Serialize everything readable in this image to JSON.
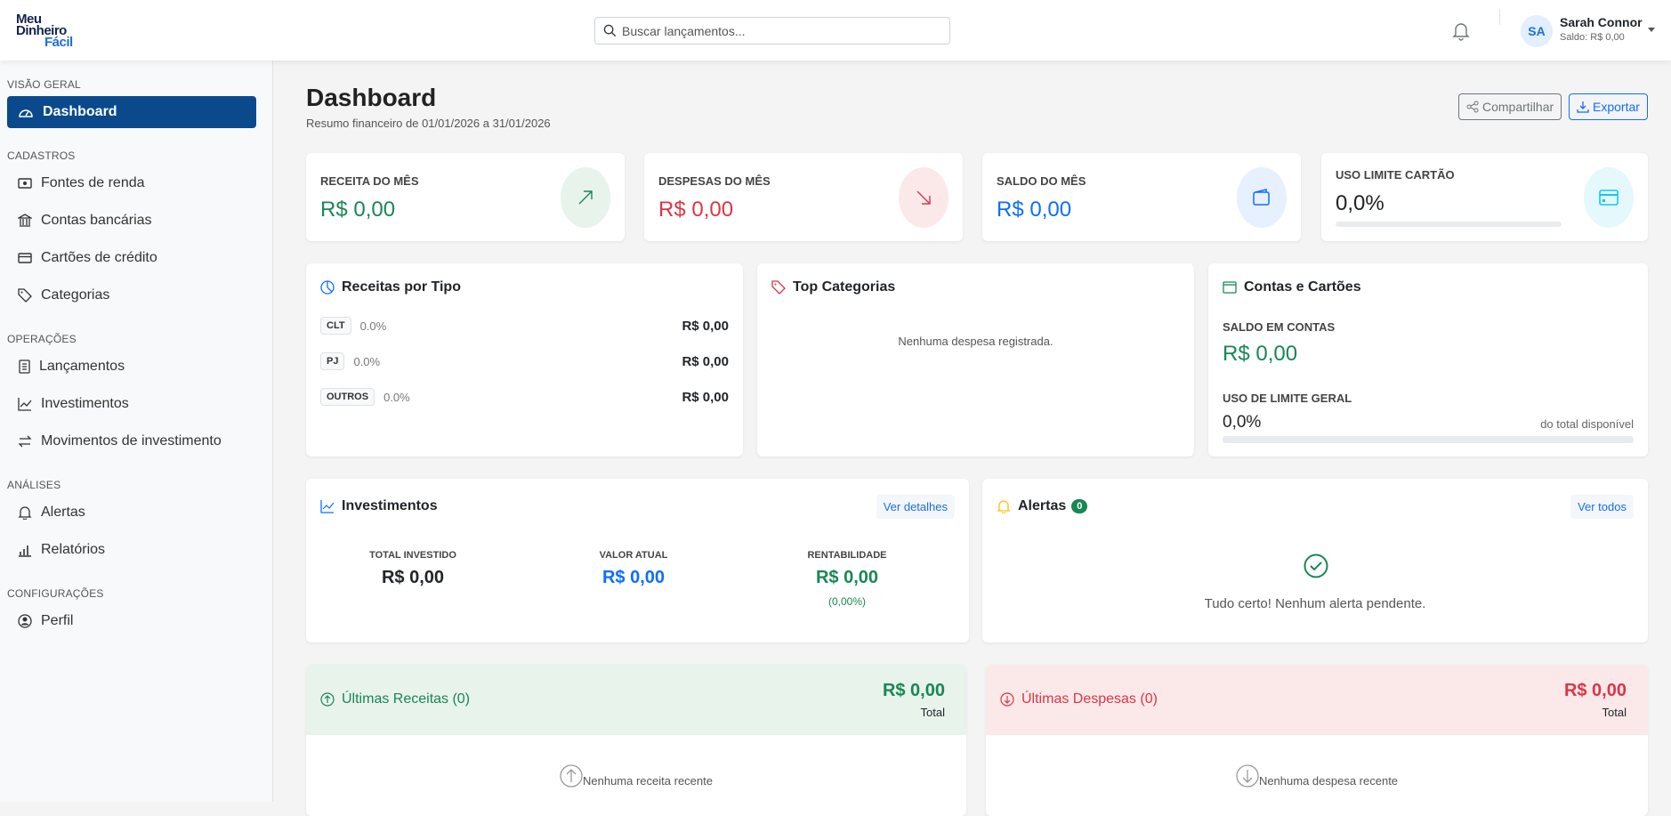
{
  "header": {
    "logo": [
      "Meu",
      "Dinheiro",
      "Fácil"
    ],
    "search_placeholder": "Buscar lançamentos...",
    "user": {
      "initials": "SA",
      "name": "Sarah Connor",
      "balance": "Saldo: R$ 0,00"
    }
  },
  "sidebar": {
    "sections": [
      {
        "title": "VISÃO GERAL",
        "items": [
          {
            "label": "Dashboard",
            "icon": "speedometer-icon",
            "active": true
          }
        ]
      },
      {
        "title": "CADASTROS",
        "items": [
          {
            "label": "Fontes de renda",
            "icon": "cash-icon"
          },
          {
            "label": "Contas bancárias",
            "icon": "bank-icon"
          },
          {
            "label": "Cartões de crédito",
            "icon": "credit-card-icon"
          },
          {
            "label": "Categorias",
            "icon": "tag-icon"
          }
        ]
      },
      {
        "title": "OPERAÇÕES",
        "items": [
          {
            "label": "Lançamentos",
            "icon": "journal-icon"
          },
          {
            "label": "Investimentos",
            "icon": "graph-icon"
          },
          {
            "label": "Movimentos de investimento",
            "icon": "arrows-icon"
          }
        ]
      },
      {
        "title": "ANÁLISES",
        "items": [
          {
            "label": "Alertas",
            "icon": "bell-icon"
          },
          {
            "label": "Relatórios",
            "icon": "bar-chart-icon"
          }
        ]
      },
      {
        "title": "CONFIGURAÇÕES",
        "items": [
          {
            "label": "Perfil",
            "icon": "person-circle-icon"
          }
        ]
      }
    ]
  },
  "page": {
    "title": "Dashboard",
    "subtitle": "Resumo financeiro de 01/01/2026 a 31/01/2026",
    "share_label": "Compartilhar",
    "export_label": "Exportar"
  },
  "stats": [
    {
      "label": "RECEITA DO MÊS",
      "value": "R$ 0,00",
      "color": "#198754",
      "bg": "#e8f3ec"
    },
    {
      "label": "DESPESAS DO MÊS",
      "value": "R$ 0,00",
      "color": "#dc3545",
      "bg": "#fbe9ea"
    },
    {
      "label": "SALDO DO MÊS",
      "value": "R$ 0,00",
      "color": "#0d6efd",
      "bg": "#e6f0ff"
    },
    {
      "label": "USO LIMITE CARTÃO",
      "value": "0,0%",
      "progress": 0,
      "color": "#0dcaf0",
      "bg": "#e5f8fc"
    }
  ],
  "receitas": {
    "title": "Receitas por Tipo",
    "rows": [
      {
        "type": "CLT",
        "pct": "0.0%",
        "amount": "R$ 0,00"
      },
      {
        "type": "PJ",
        "pct": "0.0%",
        "amount": "R$ 0,00"
      },
      {
        "type": "OUTROS",
        "pct": "0.0%",
        "amount": "R$ 0,00"
      }
    ]
  },
  "top_categorias": {
    "title": "Top Categorias",
    "empty": "Nenhuma despesa registrada."
  },
  "contas": {
    "title": "Contas e Cartões",
    "saldo_label": "SALDO EM CONTAS",
    "saldo_value": "R$ 0,00",
    "limite_label": "USO DE LIMITE GERAL",
    "limite_value": "0,0%",
    "limite_note": "do total disponível",
    "limite_progress": 0
  },
  "investimentos": {
    "title": "Investimentos",
    "link": "Ver detalhes",
    "cols": [
      {
        "label": "TOTAL INVESTIDO",
        "value": "R$ 0,00"
      },
      {
        "label": "VALOR ATUAL",
        "value": "R$ 0,00"
      },
      {
        "label": "RENTABILIDADE",
        "value": "R$ 0,00",
        "pct": "(0,00%)"
      }
    ]
  },
  "alertas": {
    "title": "Alertas",
    "count": "0",
    "link": "Ver todos",
    "empty": "Tudo certo! Nenhum alerta pendente."
  },
  "ultimas_receitas": {
    "title": "Últimas Receitas (0)",
    "total": "R$ 0,00",
    "total_label": "Total",
    "empty": "Nenhuma receita recente"
  },
  "ultimas_despesas": {
    "title": "Últimas Despesas (0)",
    "total": "R$ 0,00",
    "total_label": "Total",
    "empty": "Nenhuma despesa recente"
  }
}
